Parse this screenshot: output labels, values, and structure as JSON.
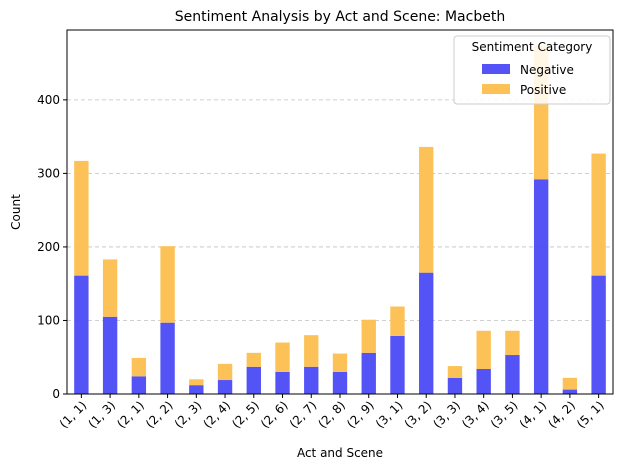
{
  "chart_data": {
    "type": "bar",
    "stacked": true,
    "title": "Sentiment Analysis by Act and Scene: Macbeth",
    "xlabel": "Act and Scene",
    "ylabel": "Count",
    "ylim": [
      0,
      495
    ],
    "yticks": [
      0,
      100,
      200,
      300,
      400
    ],
    "grid": "y-dashed",
    "legend": {
      "title": "Sentiment Category",
      "placement": "top-right"
    },
    "categories": [
      "(1, 1)",
      "(1, 3)",
      "(2, 1)",
      "(2, 2)",
      "(2, 3)",
      "(2, 4)",
      "(2, 5)",
      "(2, 6)",
      "(2, 7)",
      "(2, 8)",
      "(2, 9)",
      "(3, 1)",
      "(3, 2)",
      "(3, 3)",
      "(3, 4)",
      "(3, 5)",
      "(4, 1)",
      "(4, 2)",
      "(5, 1)"
    ],
    "series": [
      {
        "name": "Negative",
        "color": "#4a4af5",
        "values": [
          161,
          105,
          24,
          97,
          12,
          19,
          37,
          30,
          37,
          30,
          56,
          79,
          165,
          22,
          34,
          53,
          292,
          6,
          161
        ]
      },
      {
        "name": "Positive",
        "color": "#fdbf4e",
        "values": [
          156,
          78,
          25,
          104,
          8,
          22,
          19,
          40,
          43,
          25,
          45,
          40,
          171,
          16,
          52,
          33,
          182,
          16,
          166
        ]
      }
    ]
  }
}
